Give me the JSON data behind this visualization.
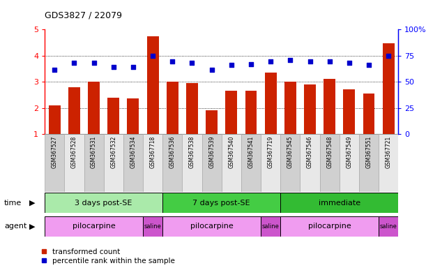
{
  "title": "GDS3827 / 22079",
  "samples": [
    "GSM367527",
    "GSM367528",
    "GSM367531",
    "GSM367532",
    "GSM367534",
    "GSM367718",
    "GSM367536",
    "GSM367538",
    "GSM367539",
    "GSM367540",
    "GSM367541",
    "GSM367719",
    "GSM367545",
    "GSM367546",
    "GSM367548",
    "GSM367549",
    "GSM367551",
    "GSM367721"
  ],
  "bar_values": [
    2.1,
    2.8,
    3.0,
    2.4,
    2.35,
    4.73,
    3.0,
    2.95,
    1.9,
    2.65,
    2.65,
    3.35,
    3.0,
    2.9,
    3.1,
    2.7,
    2.55,
    4.47
  ],
  "dot_values": [
    3.47,
    3.72,
    3.72,
    3.57,
    3.57,
    4.0,
    3.77,
    3.72,
    3.45,
    3.65,
    3.68,
    3.77,
    3.82,
    3.77,
    3.77,
    3.72,
    3.65,
    4.0
  ],
  "bar_color": "#cc2200",
  "dot_color": "#0000cc",
  "ylim": [
    1,
    5
  ],
  "yticks": [
    1,
    2,
    3,
    4,
    5
  ],
  "ytick_labels": [
    "1",
    "2",
    "3",
    "4",
    "5"
  ],
  "y2lim": [
    0,
    100
  ],
  "y2ticks": [
    0,
    25,
    50,
    75,
    100
  ],
  "y2tick_labels": [
    "0",
    "25",
    "50",
    "75",
    "100%"
  ],
  "gridlines": [
    2,
    3,
    4
  ],
  "time_groups": [
    {
      "label": "3 days post-SE",
      "start": 0,
      "end": 5,
      "color": "#aaeaaa"
    },
    {
      "label": "7 days post-SE",
      "start": 6,
      "end": 11,
      "color": "#44cc44"
    },
    {
      "label": "immediate",
      "start": 12,
      "end": 17,
      "color": "#33bb33"
    }
  ],
  "agent_groups": [
    {
      "label": "pilocarpine",
      "start": 0,
      "end": 4,
      "color": "#f09cf0"
    },
    {
      "label": "saline",
      "start": 5,
      "end": 5,
      "color": "#cc55cc"
    },
    {
      "label": "pilocarpine",
      "start": 6,
      "end": 10,
      "color": "#f09cf0"
    },
    {
      "label": "saline",
      "start": 11,
      "end": 11,
      "color": "#cc55cc"
    },
    {
      "label": "pilocarpine",
      "start": 12,
      "end": 16,
      "color": "#f09cf0"
    },
    {
      "label": "saline",
      "start": 17,
      "end": 17,
      "color": "#cc55cc"
    }
  ],
  "time_label": "time",
  "agent_label": "agent",
  "legend_bar": "transformed count",
  "legend_dot": "percentile rank within the sample",
  "background_color": "#ffffff"
}
